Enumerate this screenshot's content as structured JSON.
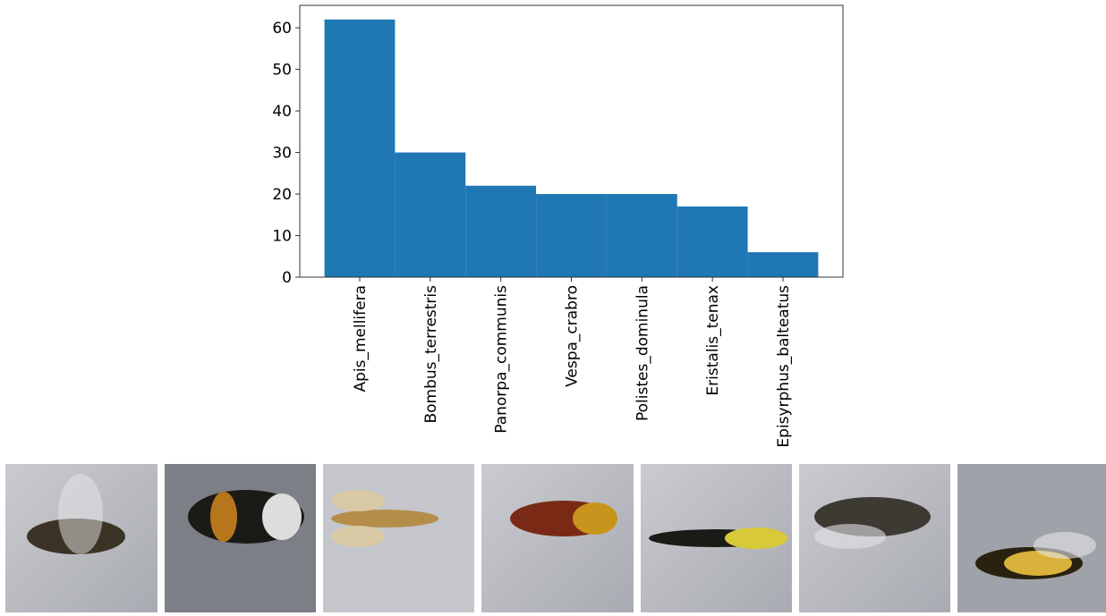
{
  "chart_data": {
    "type": "bar",
    "categories": [
      "Apis_mellifera",
      "Bombus_terrestris",
      "Panorpa_communis",
      "Vespa_crabro",
      "Polistes_dominula",
      "Eristalis_tenax",
      "Episyrphus_balteatus"
    ],
    "values": [
      62,
      30,
      22,
      20,
      20,
      17,
      6
    ],
    "color": "#1f77b4",
    "ylim": [
      0,
      65.4
    ],
    "yticks": [
      0,
      10,
      20,
      30,
      40,
      50,
      60
    ],
    "grid": false
  }
}
